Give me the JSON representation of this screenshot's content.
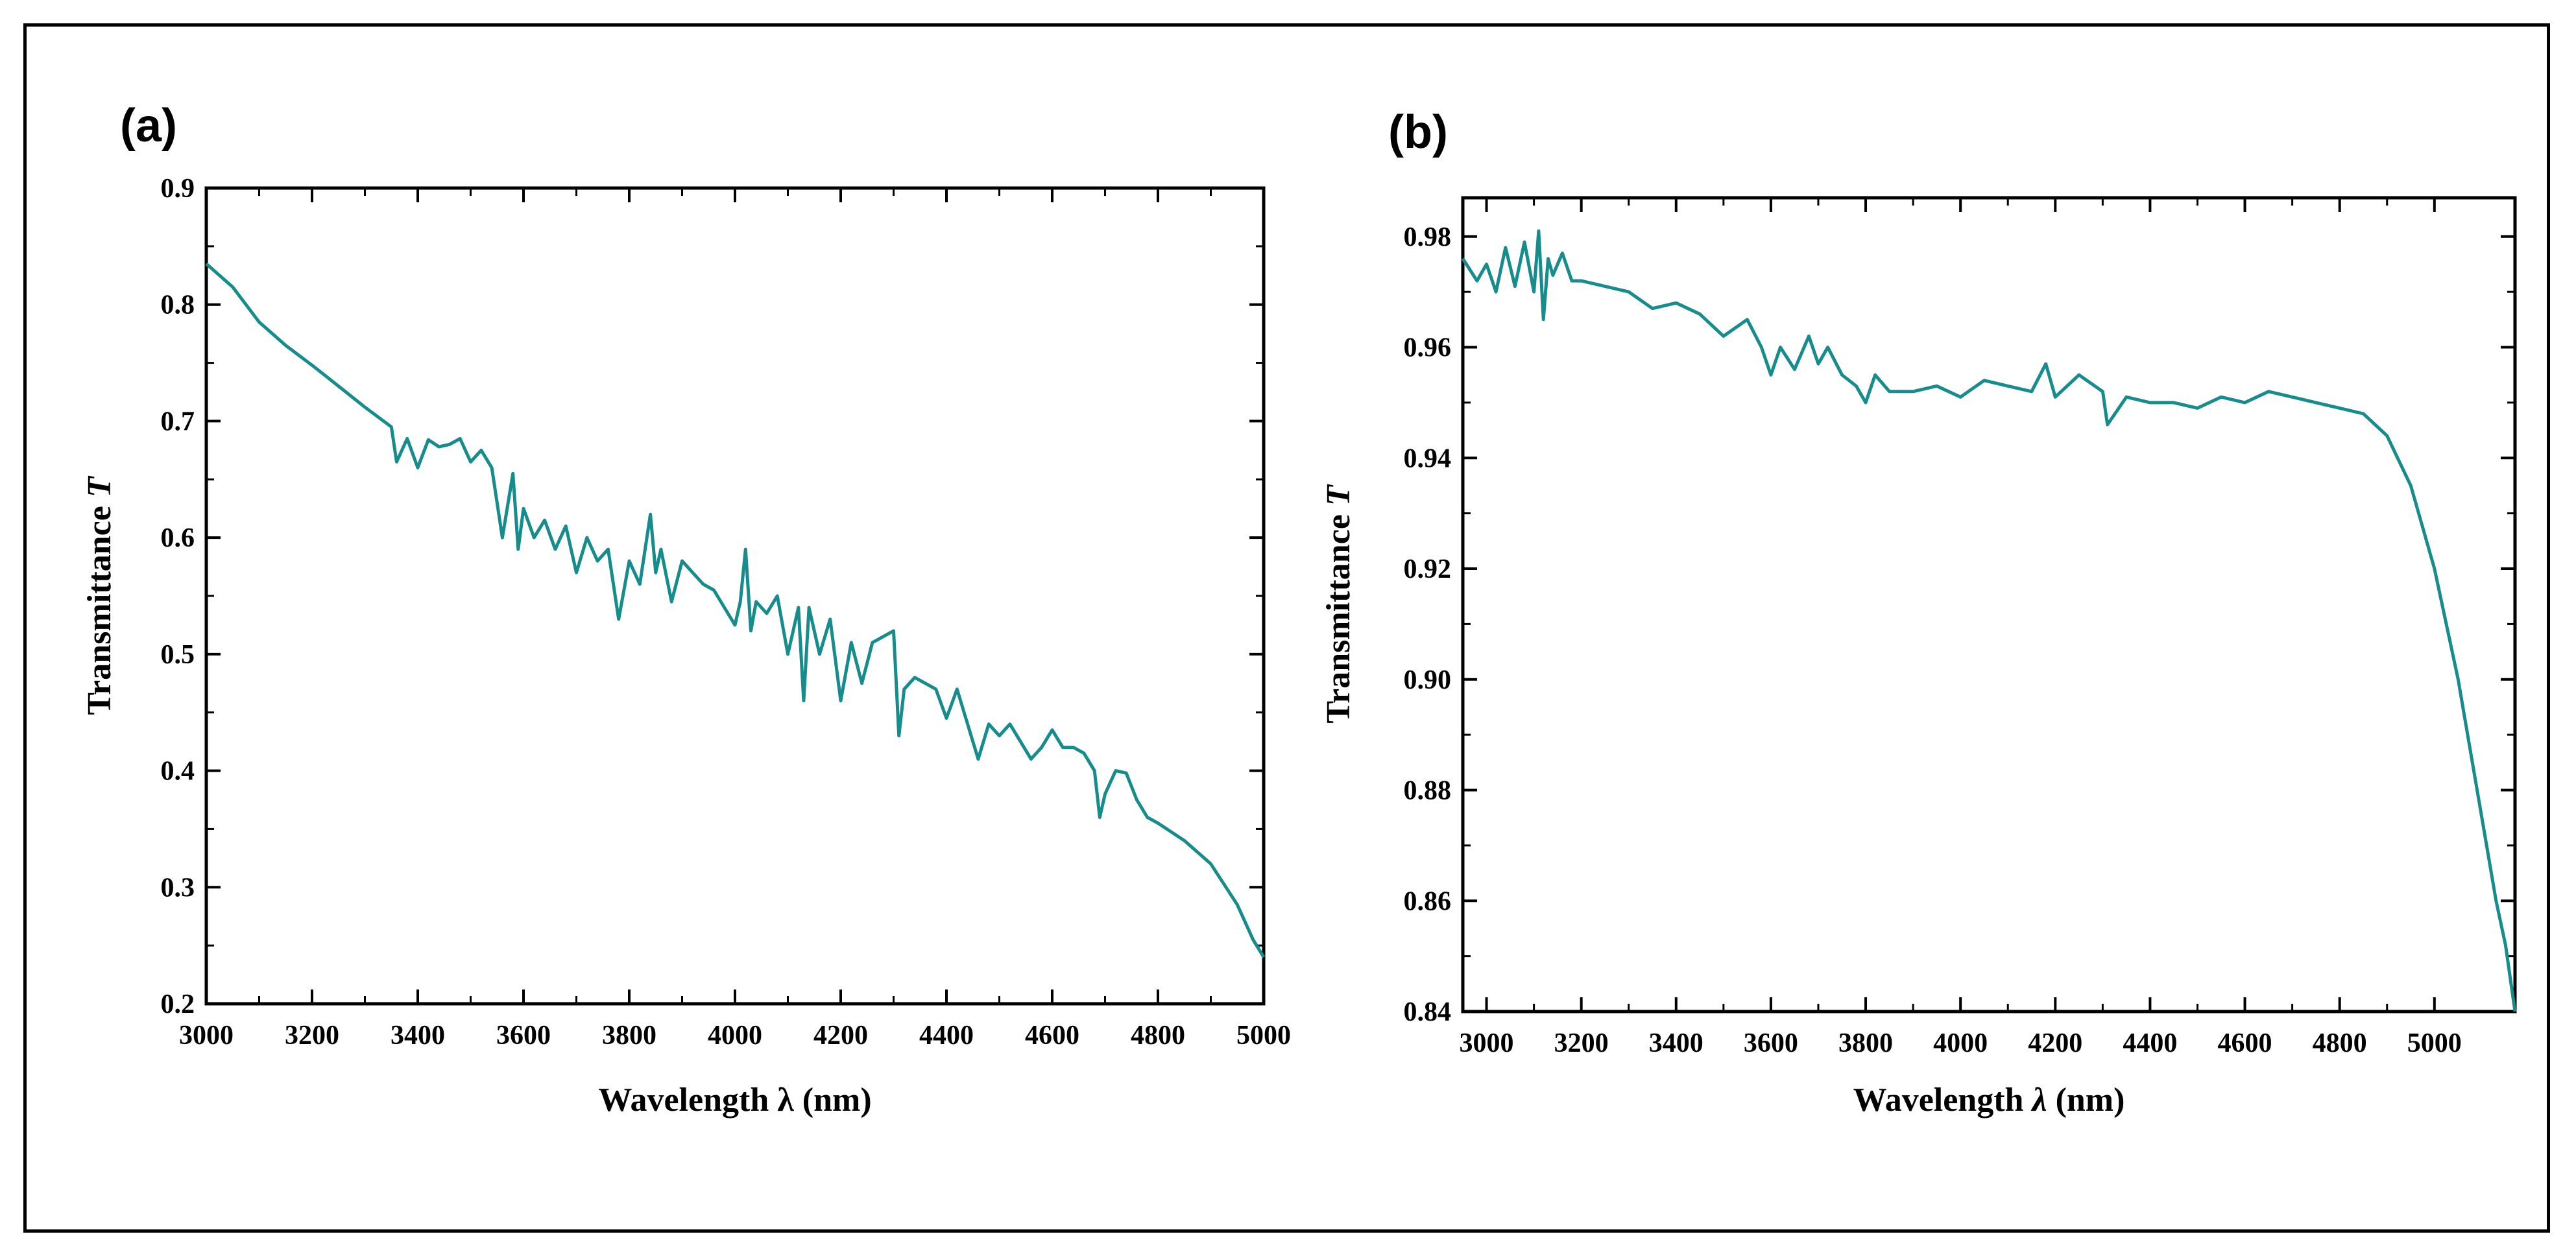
{
  "chart_data": [
    {
      "type": "line",
      "panel_label": "(a)",
      "xlabel": "Wavelength λ (nm)",
      "ylabel_main": "Transmittance ",
      "ylabel_var": "T",
      "xlim": [
        3000,
        5000
      ],
      "ylim": [
        0.2,
        0.9
      ],
      "xticks": [
        3000,
        3200,
        3400,
        3600,
        3800,
        4000,
        4200,
        4400,
        4600,
        4800,
        5000
      ],
      "yticks": [
        0.2,
        0.3,
        0.4,
        0.5,
        0.6,
        0.7,
        0.8,
        0.9
      ],
      "ytick_labels": [
        "0.2",
        "0.3",
        "0.4",
        "0.5",
        "0.6",
        "0.7",
        "0.8",
        "0.9"
      ],
      "color": "#168c8c",
      "series": [
        {
          "name": "Transmittance",
          "x": [
            3000,
            3050,
            3100,
            3150,
            3200,
            3250,
            3300,
            3350,
            3360,
            3380,
            3400,
            3420,
            3440,
            3460,
            3480,
            3500,
            3520,
            3540,
            3560,
            3580,
            3590,
            3600,
            3620,
            3640,
            3660,
            3680,
            3700,
            3720,
            3740,
            3760,
            3780,
            3800,
            3820,
            3840,
            3850,
            3860,
            3880,
            3900,
            3920,
            3940,
            3960,
            3980,
            4000,
            4010,
            4020,
            4030,
            4040,
            4060,
            4080,
            4100,
            4120,
            4130,
            4140,
            4160,
            4180,
            4200,
            4220,
            4240,
            4260,
            4280,
            4300,
            4310,
            4320,
            4340,
            4360,
            4380,
            4400,
            4420,
            4440,
            4460,
            4480,
            4500,
            4520,
            4540,
            4560,
            4580,
            4600,
            4620,
            4640,
            4660,
            4680,
            4690,
            4700,
            4720,
            4740,
            4760,
            4780,
            4800,
            4850,
            4900,
            4950,
            4980,
            5000
          ],
          "values": [
            0.835,
            0.815,
            0.785,
            0.765,
            0.748,
            0.73,
            0.712,
            0.695,
            0.665,
            0.685,
            0.66,
            0.684,
            0.678,
            0.68,
            0.685,
            0.665,
            0.675,
            0.66,
            0.6,
            0.655,
            0.59,
            0.625,
            0.6,
            0.615,
            0.59,
            0.61,
            0.57,
            0.6,
            0.58,
            0.59,
            0.53,
            0.58,
            0.56,
            0.62,
            0.57,
            0.59,
            0.545,
            0.58,
            0.57,
            0.56,
            0.555,
            0.54,
            0.525,
            0.545,
            0.59,
            0.52,
            0.545,
            0.535,
            0.55,
            0.5,
            0.54,
            0.46,
            0.54,
            0.5,
            0.53,
            0.46,
            0.51,
            0.475,
            0.51,
            0.515,
            0.52,
            0.43,
            0.47,
            0.48,
            0.475,
            0.47,
            0.445,
            0.47,
            0.44,
            0.41,
            0.44,
            0.43,
            0.44,
            0.425,
            0.41,
            0.42,
            0.435,
            0.42,
            0.42,
            0.415,
            0.4,
            0.36,
            0.38,
            0.4,
            0.398,
            0.375,
            0.36,
            0.355,
            0.34,
            0.32,
            0.285,
            0.255,
            0.24
          ]
        }
      ]
    },
    {
      "type": "line",
      "panel_label": "(b)",
      "xlabel_main": "Wavelength ",
      "xlabel_var": "λ",
      "xlabel_unit": " (nm)",
      "ylabel_main": "Transmittance ",
      "ylabel_var": "T",
      "xlim": [
        2950,
        5170
      ],
      "ylim": [
        0.84,
        0.987
      ],
      "xticks": [
        3000,
        3200,
        3400,
        3600,
        3800,
        4000,
        4200,
        4400,
        4600,
        4800,
        5000
      ],
      "yticks": [
        0.84,
        0.86,
        0.88,
        0.9,
        0.92,
        0.94,
        0.96,
        0.98
      ],
      "ytick_labels": [
        "0.84",
        "0.86",
        "0.88",
        "0.90",
        "0.92",
        "0.94",
        "0.96",
        "0.98"
      ],
      "color": "#168c8c",
      "series": [
        {
          "name": "Transmittance",
          "x": [
            2950,
            2980,
            3000,
            3020,
            3040,
            3060,
            3080,
            3100,
            3110,
            3120,
            3130,
            3140,
            3160,
            3180,
            3200,
            3250,
            3300,
            3350,
            3400,
            3450,
            3500,
            3550,
            3580,
            3600,
            3620,
            3650,
            3680,
            3700,
            3720,
            3750,
            3780,
            3800,
            3820,
            3850,
            3900,
            3950,
            4000,
            4050,
            4100,
            4150,
            4180,
            4200,
            4250,
            4300,
            4310,
            4350,
            4400,
            4450,
            4500,
            4550,
            4600,
            4650,
            4700,
            4750,
            4800,
            4850,
            4900,
            4950,
            5000,
            5050,
            5100,
            5130,
            5150,
            5170
          ],
          "values": [
            0.976,
            0.972,
            0.975,
            0.97,
            0.978,
            0.971,
            0.979,
            0.97,
            0.981,
            0.965,
            0.976,
            0.973,
            0.977,
            0.972,
            0.972,
            0.971,
            0.97,
            0.967,
            0.968,
            0.966,
            0.962,
            0.965,
            0.96,
            0.955,
            0.96,
            0.956,
            0.962,
            0.957,
            0.96,
            0.955,
            0.953,
            0.95,
            0.955,
            0.952,
            0.952,
            0.953,
            0.951,
            0.954,
            0.953,
            0.952,
            0.957,
            0.951,
            0.955,
            0.952,
            0.946,
            0.951,
            0.95,
            0.95,
            0.949,
            0.951,
            0.95,
            0.952,
            0.951,
            0.95,
            0.949,
            0.948,
            0.944,
            0.935,
            0.92,
            0.9,
            0.875,
            0.86,
            0.852,
            0.84
          ]
        }
      ]
    }
  ]
}
